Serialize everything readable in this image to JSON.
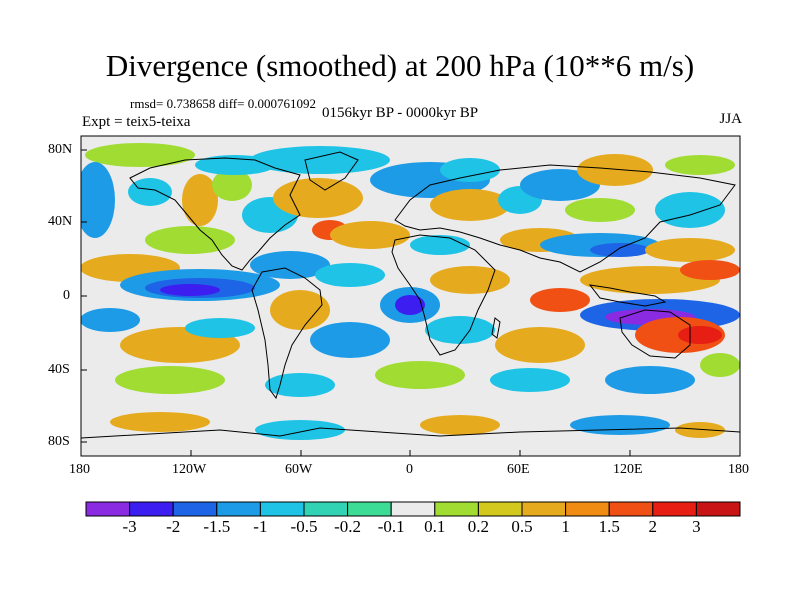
{
  "header": {
    "title": "Divergence (smoothed) at 200 hPa (10**6 m/s)",
    "stats": "rmsd= 0.738658 diff= 0.000761092",
    "period": "0156kyr BP - 0000kyr BP",
    "experiment": "Expt = teix5-teixa",
    "season": "JJA"
  },
  "map": {
    "projection": "cylindrical-equidistant",
    "lon_range": [
      -180,
      180
    ],
    "lat_range": [
      -90,
      90
    ],
    "x_ticks": [
      "180",
      "120W",
      "60W",
      "0",
      "60E",
      "120E",
      "180"
    ],
    "y_ticks": [
      "80N",
      "40N",
      "0",
      "40S",
      "80S"
    ],
    "background_color": "#ebebeb"
  },
  "colorbar": {
    "labels": [
      "-3",
      "-2",
      "-1.5",
      "-1",
      "-0.5",
      "-0.2",
      "-0.1",
      "0.1",
      "0.2",
      "0.5",
      "1",
      "1.5",
      "2",
      "3"
    ],
    "colors": [
      "#8a2be2",
      "#3c1ef0",
      "#1e64e6",
      "#1e9be6",
      "#1ec3e6",
      "#32d2b4",
      "#3cdc96",
      "#ebebeb",
      "#a0dc32",
      "#d2c81e",
      "#e6aa1e",
      "#f08c14",
      "#f05014",
      "#e61e14",
      "#c81414"
    ]
  }
}
